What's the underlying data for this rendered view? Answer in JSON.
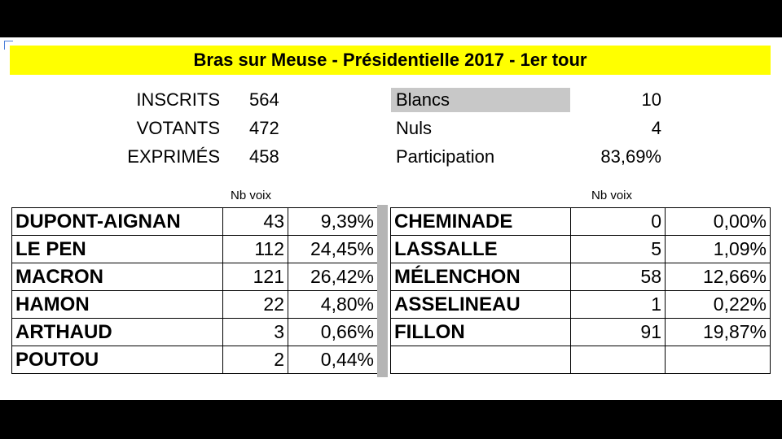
{
  "title": "Bras sur Meuse - Présidentielle 2017 - 1er tour",
  "stats_left": [
    {
      "label": "INSCRITS",
      "value": "564"
    },
    {
      "label": "VOTANTS",
      "value": "472"
    },
    {
      "label": "EXPRIMÉS",
      "value": "458"
    }
  ],
  "stats_right": [
    {
      "label": "Blancs",
      "value": "10"
    },
    {
      "label": "Nuls",
      "value": "4"
    },
    {
      "label": "Participation",
      "value": "83,69%"
    }
  ],
  "column_header": "Nb voix",
  "left_table": [
    {
      "name": "DUPONT-AIGNAN",
      "votes": "43",
      "pct": "9,39%"
    },
    {
      "name": "LE PEN",
      "votes": "112",
      "pct": "24,45%"
    },
    {
      "name": "MACRON",
      "votes": "121",
      "pct": "26,42%"
    },
    {
      "name": "HAMON",
      "votes": "22",
      "pct": "4,80%"
    },
    {
      "name": "ARTHAUD",
      "votes": "3",
      "pct": "0,66%"
    },
    {
      "name": "POUTOU",
      "votes": "2",
      "pct": "0,44%"
    }
  ],
  "right_table": [
    {
      "name": "CHEMINADE",
      "votes": "0",
      "pct": "0,00%"
    },
    {
      "name": "LASSALLE",
      "votes": "5",
      "pct": "1,09%"
    },
    {
      "name": "MÉLENCHON",
      "votes": "58",
      "pct": "12,66%"
    },
    {
      "name": "ASSELINEAU",
      "votes": "1",
      "pct": "0,22%"
    },
    {
      "name": "FILLON",
      "votes": "91",
      "pct": "19,87%"
    },
    {
      "name": "",
      "votes": "",
      "pct": ""
    }
  ],
  "colors": {
    "title_bg": "#ffff00",
    "highlight_bg": "#c8c8c8",
    "divider": "#b5b5b5"
  }
}
